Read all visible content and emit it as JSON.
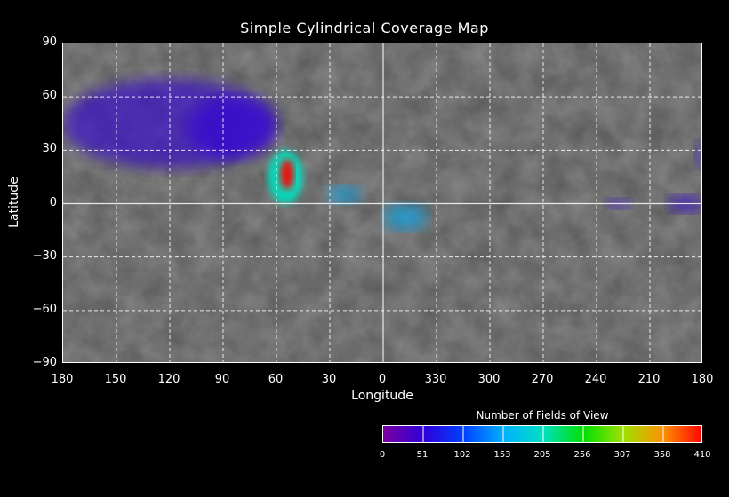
{
  "title": "Simple Cylindrical Coverage Map",
  "axes": {
    "xlabel": "Longitude",
    "ylabel": "Latitude",
    "x_ticks": [
      "180",
      "150",
      "120",
      "90",
      "60",
      "30",
      "0",
      "330",
      "300",
      "270",
      "240",
      "210",
      "180"
    ],
    "y_ticks": [
      "90",
      "60",
      "30",
      "0",
      "−30",
      "−60",
      "−90"
    ]
  },
  "colorbar": {
    "title": "Number of Fields of View",
    "ticks": [
      "0",
      "51",
      "102",
      "153",
      "205",
      "256",
      "307",
      "358",
      "410"
    ],
    "colors": [
      "#7a00a0",
      "#3000d8",
      "#0040ff",
      "#00b0ff",
      "#00e0c0",
      "#00e000",
      "#a0e000",
      "#ff9000",
      "#ff0000"
    ]
  },
  "colors": {
    "background": "#000000",
    "map_base": "#5a5a5a",
    "grid": "#ffffff"
  },
  "chart_data": {
    "type": "heatmap",
    "title": "Simple Cylindrical Coverage Map",
    "xlabel": "Longitude",
    "ylabel": "Latitude",
    "xlim": [
      180,
      -180
    ],
    "ylim": [
      -90,
      90
    ],
    "x_tick_values": [
      180,
      150,
      120,
      90,
      60,
      30,
      0,
      -30,
      -60,
      -90,
      -120,
      -150,
      -180
    ],
    "y_tick_values": [
      90,
      60,
      30,
      0,
      -30,
      -60,
      -90
    ],
    "grid": true,
    "colorbar": {
      "min": 0,
      "max": 410,
      "label": "Number of Fields of View"
    },
    "coverage_regions": [
      {
        "lon_range": [
          180,
          60
        ],
        "lat_range": [
          20,
          70
        ],
        "value": 40
      },
      {
        "lon_range": [
          110,
          60
        ],
        "lat_range": [
          25,
          60
        ],
        "value": 60
      },
      {
        "lon_range": [
          65,
          45
        ],
        "lat_range": [
          0,
          30
        ],
        "value": 200
      },
      {
        "lon_range": [
          58,
          50
        ],
        "lat_range": [
          8,
          25
        ],
        "value": 400
      },
      {
        "lon_range": [
          32,
          12
        ],
        "lat_range": [
          0,
          10
        ],
        "value": 150
      },
      {
        "lon_range": [
          0,
          -25
        ],
        "lat_range": [
          -15,
          0
        ],
        "value": 140
      },
      {
        "lon_range": [
          -125,
          -140
        ],
        "lat_range": [
          -3,
          3
        ],
        "value": 30
      },
      {
        "lon_range": [
          -160,
          -180
        ],
        "lat_range": [
          -5,
          5
        ],
        "value": 50
      },
      {
        "lon_range": [
          -175,
          -180
        ],
        "lat_range": [
          20,
          35
        ],
        "value": 40
      }
    ]
  }
}
